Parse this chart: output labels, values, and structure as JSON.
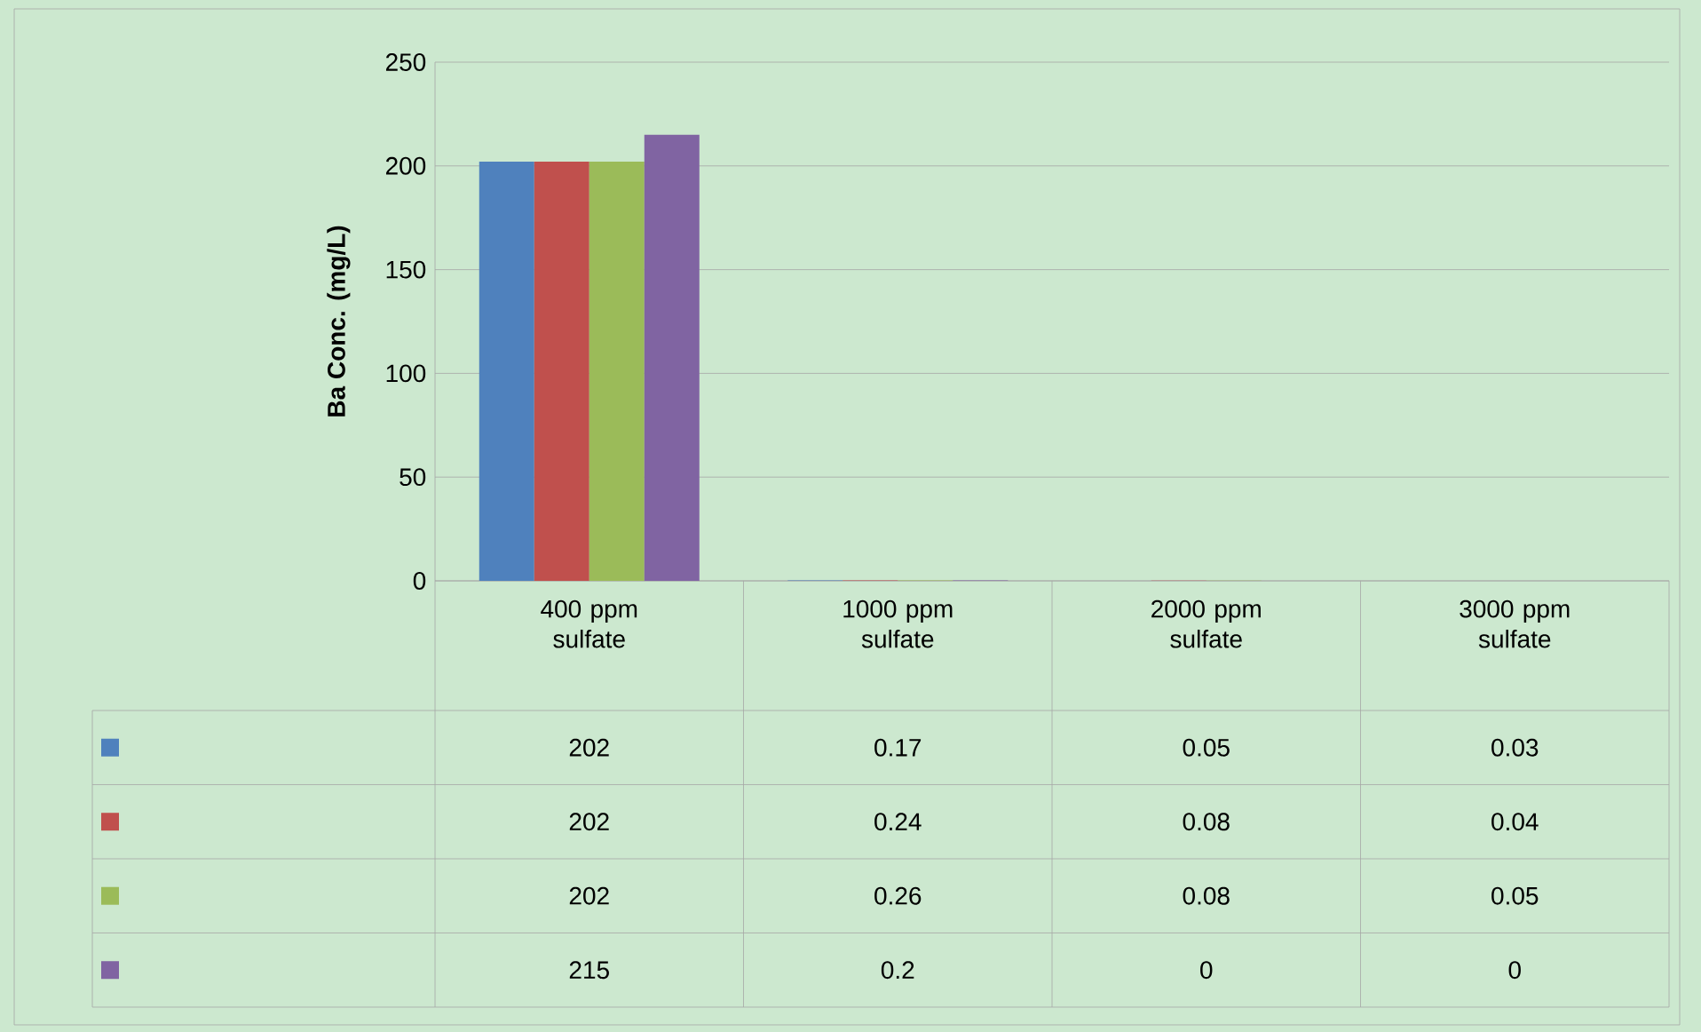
{
  "chart_data": {
    "type": "bar",
    "ylabel": "Ba Conc. (mg/L)",
    "categories": [
      "400 ppm sulfate",
      "1000 ppm sulfate",
      "2000 ppm sulfate",
      "3000 ppm sulfate"
    ],
    "series": [
      {
        "color": "#4f81bd",
        "values": [
          202,
          0.17,
          0.05,
          0.03
        ]
      },
      {
        "color": "#c0504d",
        "values": [
          202,
          0.24,
          0.08,
          0.04
        ]
      },
      {
        "color": "#9bbb59",
        "values": [
          202,
          0.26,
          0.08,
          0.05
        ]
      },
      {
        "color": "#8064a2",
        "values": [
          215,
          0.2,
          0,
          0
        ]
      }
    ],
    "ylim": [
      0,
      250
    ],
    "yticks": [
      0,
      50,
      100,
      150,
      200,
      250
    ],
    "grid": "y",
    "data_labels": true
  }
}
